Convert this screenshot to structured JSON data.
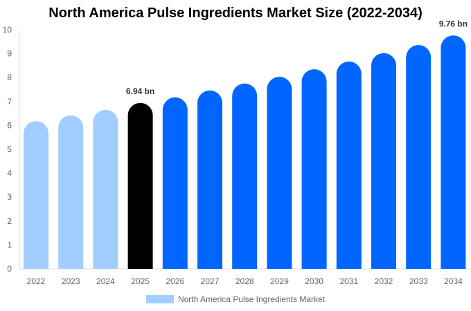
{
  "chart_data": {
    "type": "bar",
    "title": "North America Pulse Ingredients Market Size (2022-2034)",
    "categories": [
      "2022",
      "2023",
      "2024",
      "2025",
      "2026",
      "2027",
      "2028",
      "2029",
      "2030",
      "2031",
      "2032",
      "2033",
      "2034"
    ],
    "series": [
      {
        "name": "North America Pulse Ingredients Market",
        "values": [
          6.18,
          6.42,
          6.65,
          6.94,
          7.17,
          7.46,
          7.75,
          8.03,
          8.35,
          8.67,
          9.02,
          9.36,
          9.76
        ]
      }
    ],
    "data_labels": {
      "2025": "6.94 bn",
      "2034": "9.76 bn"
    },
    "ylim": [
      0,
      10
    ],
    "yticks": [
      0,
      1,
      2,
      3,
      4,
      5,
      6,
      7,
      8,
      9,
      10
    ],
    "grid": false,
    "legend": "bottom",
    "colors": {
      "historic": "#a0cfff",
      "current": "#000000",
      "forecast": "#0066ff"
    },
    "color_groups": [
      "historic",
      "historic",
      "historic",
      "current",
      "forecast",
      "forecast",
      "forecast",
      "forecast",
      "forecast",
      "forecast",
      "forecast",
      "forecast",
      "forecast"
    ]
  }
}
